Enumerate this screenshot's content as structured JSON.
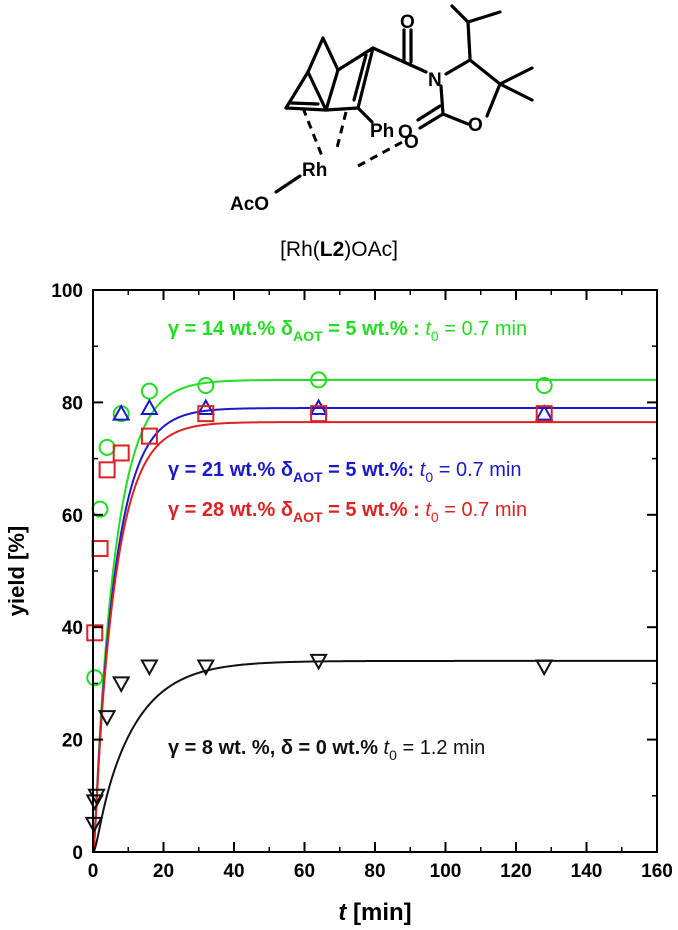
{
  "structure": {
    "atom_O_carbonyl": "O",
    "atom_N": "N",
    "atom_O_ring": "O",
    "atom_O_exo": "O",
    "atom_O_rh": "O",
    "atom_Ph": "Ph",
    "atom_Rh": "Rh",
    "atom_AcO": "AcO",
    "caption_pre": "[Rh(",
    "caption_bold": "L2",
    "caption_post": ")OAc]"
  },
  "chart_data": {
    "type": "scatter",
    "xlabel": "t",
    "xlabel_unit": "[min]",
    "ylabel": "yield [%]",
    "xlim": [
      0,
      160
    ],
    "ylim": [
      0,
      100
    ],
    "xticks": [
      0,
      20,
      40,
      60,
      80,
      100,
      120,
      140,
      160
    ],
    "yticks": [
      0,
      20,
      40,
      60,
      80,
      100
    ],
    "grid": false,
    "series": [
      {
        "color": "#22dd22",
        "marker": "circle",
        "x": [
          0.5,
          2,
          4,
          8,
          16,
          32,
          64,
          128
        ],
        "y": [
          31,
          61,
          72,
          78,
          82,
          83,
          84,
          83
        ],
        "fit": {
          "plateau": 84,
          "t0": 0.7
        },
        "annotation": {
          "gamma": "γ = 14 wt.%",
          "delta_sym": "δ",
          "delta_sub": "AOT",
          "delta_val": " = 5 wt.% :",
          "t_sym": "t",
          "t_sub": "0",
          "t_val": " = 0.7 min"
        }
      },
      {
        "color": "#1a1acc",
        "marker": "triangle-up",
        "x": [
          8,
          16,
          32,
          64,
          128
        ],
        "y": [
          78,
          79,
          79,
          79,
          78
        ],
        "fit": {
          "plateau": 79,
          "t0": 0.7
        },
        "annotation": {
          "gamma": "γ = 21 wt.%",
          "delta_sym": "δ",
          "delta_sub": "AOT",
          "delta_val": " = 5 wt.%:",
          "t_sym": "t",
          "t_sub": "0",
          "t_val": " = 0.7 min"
        }
      },
      {
        "color": "#dd2222",
        "marker": "square",
        "x": [
          0.5,
          2,
          4,
          8,
          16,
          32,
          64,
          128
        ],
        "y": [
          39,
          54,
          68,
          71,
          74,
          78,
          78,
          78
        ],
        "fit": {
          "plateau": 76.5,
          "t0": 0.7
        },
        "annotation": {
          "gamma": "γ = 28 wt.%",
          "delta_sym": "δ",
          "delta_sub": "AOT",
          "delta_val": " = 5 wt.% :",
          "t_sym": "t",
          "t_sub": "0",
          "t_val": " = 0.7 min"
        }
      },
      {
        "color": "#111111",
        "marker": "triangle-down",
        "x": [
          0.25,
          0.5,
          1,
          4,
          8,
          16,
          32,
          64,
          128
        ],
        "y": [
          5,
          9,
          10,
          24,
          30,
          33,
          33,
          34,
          33
        ],
        "fit": {
          "plateau": 34,
          "t0": 1.2
        },
        "annotation": {
          "gamma": "γ = 8 wt. %, δ = 0 wt.%",
          "delta_sym": "",
          "delta_sub": "",
          "delta_val": "",
          "t_sym": "t",
          "t_sub": "0",
          "t_val": " =  1.2 min"
        }
      }
    ]
  }
}
